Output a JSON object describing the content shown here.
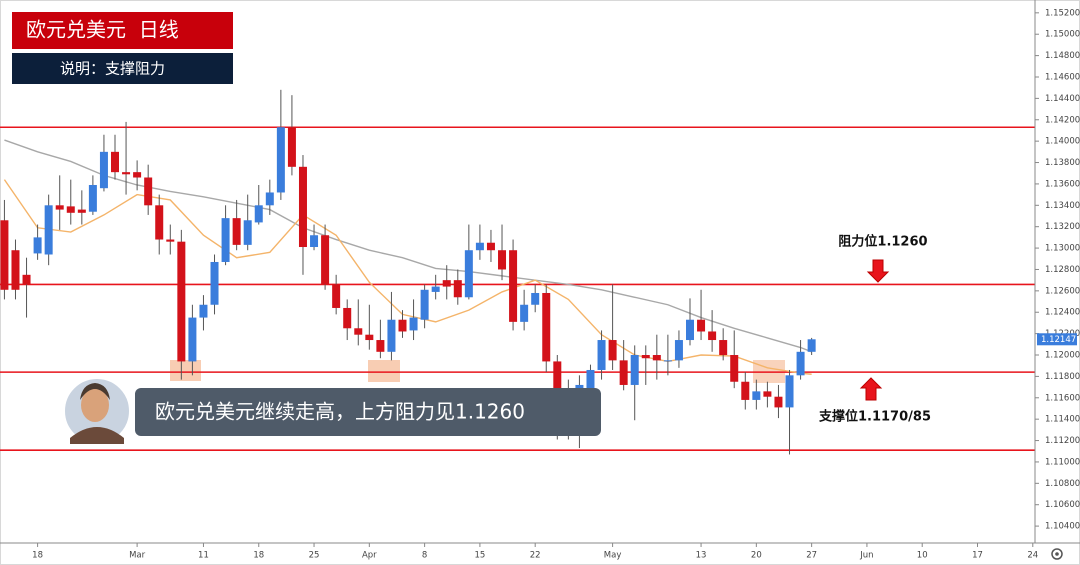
{
  "chart_data": {
    "type": "candlestick",
    "title": "欧元兑美元  日线",
    "subtitle": "说明：支撑阻力",
    "caption": "欧元兑美元继续走高，上方阻力见1.1260",
    "annotations": [
      {
        "text": "阻力位1.1260",
        "direction": "down"
      },
      {
        "text": "支撑位1.1170/85",
        "direction": "up"
      }
    ],
    "up_color": "#3a7ddc",
    "down_color": "#d3121a",
    "ohlc": [
      [
        1.1326,
        1.1345,
        1.1252,
        1.1261
      ],
      [
        1.1298,
        1.1308,
        1.1252,
        1.1261
      ],
      [
        1.1275,
        1.1291,
        1.1235,
        1.1266
      ],
      [
        1.1295,
        1.1322,
        1.1289,
        1.131
      ],
      [
        1.1294,
        1.135,
        1.1284,
        1.134
      ],
      [
        1.134,
        1.1368,
        1.1317,
        1.1336
      ],
      [
        1.1339,
        1.1364,
        1.1322,
        1.1333
      ],
      [
        1.1336,
        1.1354,
        1.1322,
        1.1333
      ],
      [
        1.1334,
        1.1368,
        1.1331,
        1.1359
      ],
      [
        1.1356,
        1.1406,
        1.1353,
        1.139
      ],
      [
        1.139,
        1.1406,
        1.1364,
        1.1371
      ],
      [
        1.1371,
        1.1418,
        1.135,
        1.1369
      ],
      [
        1.1371,
        1.1382,
        1.1354,
        1.1366
      ],
      [
        1.1366,
        1.1378,
        1.1331,
        1.134
      ],
      [
        1.134,
        1.135,
        1.1294,
        1.1308
      ],
      [
        1.1308,
        1.1322,
        1.1294,
        1.1306
      ],
      [
        1.1306,
        1.1317,
        1.1177,
        1.1194
      ],
      [
        1.1194,
        1.1247,
        1.1181,
        1.1235
      ],
      [
        1.1235,
        1.1256,
        1.1223,
        1.1247
      ],
      [
        1.1247,
        1.1294,
        1.1238,
        1.1287
      ],
      [
        1.1287,
        1.134,
        1.1284,
        1.1328
      ],
      [
        1.1328,
        1.1345,
        1.1298,
        1.1303
      ],
      [
        1.1303,
        1.135,
        1.1298,
        1.1326
      ],
      [
        1.1324,
        1.1359,
        1.1322,
        1.134
      ],
      [
        1.134,
        1.1364,
        1.1331,
        1.1352
      ],
      [
        1.1352,
        1.1448,
        1.1345,
        1.1413
      ],
      [
        1.1413,
        1.1443,
        1.1368,
        1.1376
      ],
      [
        1.1376,
        1.1387,
        1.1275,
        1.1301
      ],
      [
        1.1301,
        1.1322,
        1.1298,
        1.1312
      ],
      [
        1.1312,
        1.1322,
        1.1261,
        1.1266
      ],
      [
        1.1266,
        1.1275,
        1.1238,
        1.1244
      ],
      [
        1.1244,
        1.1252,
        1.1214,
        1.1225
      ],
      [
        1.1225,
        1.1252,
        1.1209,
        1.1219
      ],
      [
        1.1219,
        1.1247,
        1.1205,
        1.1214
      ],
      [
        1.1214,
        1.1233,
        1.1197,
        1.1203
      ],
      [
        1.1203,
        1.1259,
        1.1195,
        1.1233
      ],
      [
        1.1233,
        1.1242,
        1.1216,
        1.1222
      ],
      [
        1.1223,
        1.1252,
        1.1214,
        1.1235
      ],
      [
        1.1233,
        1.1266,
        1.1225,
        1.1261
      ],
      [
        1.1259,
        1.1275,
        1.1252,
        1.1264
      ],
      [
        1.127,
        1.1284,
        1.1252,
        1.1264
      ],
      [
        1.127,
        1.128,
        1.1247,
        1.1254
      ],
      [
        1.1254,
        1.1322,
        1.1252,
        1.1298
      ],
      [
        1.1298,
        1.1322,
        1.1289,
        1.1305
      ],
      [
        1.1305,
        1.1317,
        1.1287,
        1.1298
      ],
      [
        1.1298,
        1.1322,
        1.127,
        1.128
      ],
      [
        1.1298,
        1.1308,
        1.1223,
        1.1231
      ],
      [
        1.1231,
        1.1261,
        1.1223,
        1.1247
      ],
      [
        1.1247,
        1.1266,
        1.124,
        1.1258
      ],
      [
        1.1258,
        1.1266,
        1.1184,
        1.1194
      ],
      [
        1.1194,
        1.12,
        1.1121,
        1.1135
      ],
      [
        1.1163,
        1.1177,
        1.1121,
        1.113
      ],
      [
        1.113,
        1.1181,
        1.1113,
        1.1172
      ],
      [
        1.1149,
        1.1191,
        1.1144,
        1.1186
      ],
      [
        1.1186,
        1.1223,
        1.1177,
        1.1214
      ],
      [
        1.1214,
        1.1266,
        1.1186,
        1.1195
      ],
      [
        1.1195,
        1.1214,
        1.1167,
        1.1172
      ],
      [
        1.1172,
        1.1209,
        1.1139,
        1.12
      ],
      [
        1.12,
        1.1209,
        1.1172,
        1.1197
      ],
      [
        1.12,
        1.1219,
        1.1177,
        1.1195
      ],
      [
        1.1194,
        1.1219,
        1.1181,
        1.1195
      ],
      [
        1.1195,
        1.1223,
        1.1188,
        1.1214
      ],
      [
        1.1214,
        1.1253,
        1.1209,
        1.1233
      ],
      [
        1.1233,
        1.1261,
        1.1214,
        1.1222
      ],
      [
        1.1222,
        1.1242,
        1.1203,
        1.1214
      ],
      [
        1.1214,
        1.1225,
        1.1195,
        1.12
      ],
      [
        1.12,
        1.1223,
        1.1169,
        1.1175
      ],
      [
        1.1175,
        1.1184,
        1.1149,
        1.1158
      ],
      [
        1.1158,
        1.1177,
        1.1149,
        1.1166
      ],
      [
        1.1166,
        1.1175,
        1.1151,
        1.1161
      ],
      [
        1.1161,
        1.1172,
        1.1141,
        1.1151
      ],
      [
        1.1151,
        1.1186,
        1.1107,
        1.1181
      ],
      [
        1.1181,
        1.1214,
        1.1177,
        1.1203
      ],
      [
        1.1203,
        1.1216,
        1.12,
        1.12147
      ]
    ],
    "moving_averages": [
      {
        "color": "#a8a8a8",
        "x": [
          0,
          3,
          6,
          9,
          12,
          15,
          18,
          21,
          24,
          27,
          30,
          33,
          36,
          39,
          42,
          45,
          48,
          51,
          54,
          57,
          60,
          63,
          66,
          69,
          72,
          73
        ],
        "values": [
          1.1401,
          1.139,
          1.1381,
          1.1368,
          1.1359,
          1.1353,
          1.1348,
          1.1342,
          1.1336,
          1.1319,
          1.1308,
          1.1298,
          1.1291,
          1.1281,
          1.1278,
          1.1274,
          1.127,
          1.1266,
          1.1261,
          1.1254,
          1.1247,
          1.1235,
          1.1225,
          1.1216,
          1.1207,
          1.1203
        ]
      },
      {
        "color": "#f4b46a",
        "x": [
          0,
          3,
          6,
          9,
          12,
          15,
          18,
          21,
          24,
          27,
          30,
          33,
          36,
          39,
          42,
          45,
          48,
          51,
          54,
          57,
          60,
          63,
          66,
          69,
          72,
          73
        ],
        "values": [
          1.1364,
          1.1319,
          1.1315,
          1.1331,
          1.135,
          1.1345,
          1.1312,
          1.1291,
          1.1296,
          1.1331,
          1.1312,
          1.1268,
          1.1238,
          1.1231,
          1.1242,
          1.1259,
          1.127,
          1.1252,
          1.1219,
          1.12,
          1.1194,
          1.12,
          1.1199,
          1.1188,
          1.1183,
          1.1182
        ]
      }
    ],
    "levels": [
      {
        "value": 1.1413,
        "color": "#e8141c"
      },
      {
        "value": 1.1266,
        "color": "#e8141c"
      },
      {
        "value": 1.1184,
        "color": "#e8141c"
      },
      {
        "value": 1.1111,
        "color": "#e8141c"
      }
    ],
    "ylim": [
      1.1027,
      1.1532
    ],
    "yticks": [
      {
        "value": 1.104,
        "label": "1.10400"
      },
      {
        "value": 1.106,
        "label": "1.10600"
      },
      {
        "value": 1.108,
        "label": "1.10800"
      },
      {
        "value": 1.11,
        "label": "1.11000"
      },
      {
        "value": 1.112,
        "label": "1.11200"
      },
      {
        "value": 1.114,
        "label": "1.11400"
      },
      {
        "value": 1.116,
        "label": "1.11600"
      },
      {
        "value": 1.118,
        "label": "1.11800"
      },
      {
        "value": 1.12,
        "label": "1.12000"
      },
      {
        "value": 1.122,
        "label": "1.12200"
      },
      {
        "value": 1.124,
        "label": "1.12400"
      },
      {
        "value": 1.126,
        "label": "1.12600"
      },
      {
        "value": 1.128,
        "label": "1.12800"
      },
      {
        "value": 1.13,
        "label": "1.13000"
      },
      {
        "value": 1.132,
        "label": "1.13200"
      },
      {
        "value": 1.134,
        "label": "1.13400"
      },
      {
        "value": 1.136,
        "label": "1.13600"
      },
      {
        "value": 1.138,
        "label": "1.13800"
      },
      {
        "value": 1.14,
        "label": "1.14000"
      },
      {
        "value": 1.142,
        "label": "1.14200"
      },
      {
        "value": 1.144,
        "label": "1.14400"
      },
      {
        "value": 1.146,
        "label": "1.14600"
      },
      {
        "value": 1.148,
        "label": "1.14800"
      },
      {
        "value": 1.15,
        "label": "1.15000"
      },
      {
        "value": 1.152,
        "label": "1.15200"
      }
    ],
    "xlim": [
      -0.4,
      93.2
    ],
    "xticks": [
      {
        "value": 3,
        "label": "18"
      },
      {
        "value": 12,
        "label": "Mar"
      },
      {
        "value": 18,
        "label": "11"
      },
      {
        "value": 23,
        "label": "18"
      },
      {
        "value": 28,
        "label": "25"
      },
      {
        "value": 33,
        "label": "Apr"
      },
      {
        "value": 38,
        "label": "8"
      },
      {
        "value": 43,
        "label": "15"
      },
      {
        "value": 48,
        "label": "22"
      },
      {
        "value": 55,
        "label": "May"
      },
      {
        "value": 63,
        "label": "13"
      },
      {
        "value": 68,
        "label": "20"
      },
      {
        "value": 73,
        "label": "27"
      },
      {
        "value": 78,
        "label": "Jun"
      },
      {
        "value": 83,
        "label": "10"
      },
      {
        "value": 88,
        "label": "17"
      },
      {
        "value": 93,
        "label": "24"
      }
    ]
  }
}
